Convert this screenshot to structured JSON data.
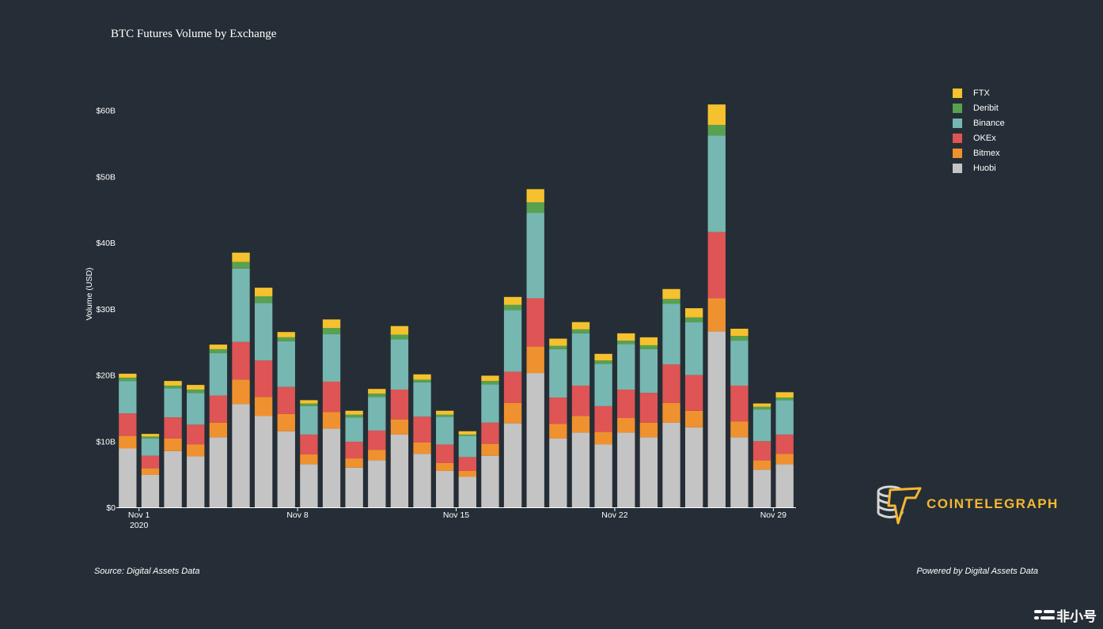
{
  "title": "BTC Futures Volume by Exchange",
  "source_text": "Source: Digital Assets Data",
  "powered_text": "Powered by Digital Assets Data",
  "logo_text": "COINTELEGRAPH",
  "watermark_text": "非小号",
  "chart_data": {
    "type": "bar",
    "stacked": true,
    "ylabel": "Volume (USD)",
    "ylim": [
      0,
      62
    ],
    "yticks": [
      0,
      10,
      20,
      30,
      40,
      50,
      60
    ],
    "ytick_labels": [
      "$0",
      "$10B",
      "$20B",
      "$30B",
      "$40B",
      "$50B",
      "$60B"
    ],
    "xtick_labels": [
      {
        "day": 1,
        "label": "Nov 1",
        "sub": "2020"
      },
      {
        "day": 8,
        "label": "Nov 8",
        "sub": ""
      },
      {
        "day": 15,
        "label": "Nov 15",
        "sub": ""
      },
      {
        "day": 22,
        "label": "Nov 22",
        "sub": ""
      },
      {
        "day": 29,
        "label": "Nov 29",
        "sub": ""
      }
    ],
    "categories": [
      "2020-10-31",
      "2020-11-01",
      "2020-11-02",
      "2020-11-03",
      "2020-11-04",
      "2020-11-05",
      "2020-11-06",
      "2020-11-07",
      "2020-11-08",
      "2020-11-09",
      "2020-11-10",
      "2020-11-11",
      "2020-11-12",
      "2020-11-13",
      "2020-11-14",
      "2020-11-15",
      "2020-11-16",
      "2020-11-17",
      "2020-11-18",
      "2020-11-19",
      "2020-11-20",
      "2020-11-21",
      "2020-11-22",
      "2020-11-23",
      "2020-11-24",
      "2020-11-25",
      "2020-11-26",
      "2020-11-27",
      "2020-11-28",
      "2020-11-29"
    ],
    "legend_position": "top-right",
    "grid": false,
    "series": [
      {
        "name": "Huobi",
        "color": "#c4c4c4",
        "values": [
          8.9,
          4.9,
          8.5,
          7.7,
          10.6,
          15.6,
          13.8,
          11.5,
          6.5,
          11.9,
          6.0,
          7.1,
          11.0,
          8.1,
          5.5,
          4.6,
          7.8,
          12.7,
          20.3,
          10.4,
          11.3,
          9.5,
          11.3,
          10.6,
          12.8,
          12.1,
          26.6,
          10.6,
          5.7,
          6.5
        ]
      },
      {
        "name": "Bitmex",
        "color": "#f0912f",
        "values": [
          1.9,
          1.0,
          1.9,
          1.8,
          2.2,
          3.7,
          2.9,
          2.6,
          1.5,
          2.5,
          1.4,
          1.6,
          2.3,
          1.7,
          1.2,
          0.9,
          1.8,
          3.1,
          4.0,
          2.2,
          2.5,
          1.9,
          2.2,
          2.2,
          3.0,
          2.5,
          5.0,
          2.4,
          1.4,
          1.6
        ]
      },
      {
        "name": "OKEx",
        "color": "#df5454",
        "values": [
          3.4,
          1.9,
          3.2,
          3.0,
          4.1,
          5.7,
          5.5,
          4.1,
          3.0,
          4.6,
          2.5,
          2.9,
          4.5,
          3.9,
          2.8,
          2.1,
          3.2,
          4.7,
          7.3,
          4.0,
          4.6,
          3.9,
          4.3,
          4.5,
          5.8,
          5.4,
          10.0,
          5.4,
          2.9,
          2.9
        ]
      },
      {
        "name": "Binance",
        "color": "#76b7b2",
        "values": [
          4.9,
          2.6,
          4.4,
          4.8,
          6.4,
          11.1,
          8.7,
          6.9,
          4.3,
          7.2,
          3.7,
          5.1,
          7.6,
          5.2,
          4.2,
          3.2,
          5.8,
          9.3,
          12.9,
          7.3,
          7.9,
          6.4,
          6.9,
          6.6,
          9.2,
          8.0,
          14.6,
          6.8,
          4.8,
          5.2
        ]
      },
      {
        "name": "Deribit",
        "color": "#59a14f",
        "values": [
          0.5,
          0.3,
          0.4,
          0.5,
          0.6,
          1.0,
          1.0,
          0.6,
          0.4,
          0.9,
          0.4,
          0.5,
          0.7,
          0.4,
          0.3,
          0.2,
          0.5,
          0.8,
          1.6,
          0.5,
          0.6,
          0.5,
          0.5,
          0.6,
          0.7,
          0.7,
          1.6,
          0.7,
          0.4,
          0.4
        ]
      },
      {
        "name": "FTX",
        "color": "#f5c12e",
        "values": [
          0.6,
          0.4,
          0.7,
          0.7,
          0.7,
          1.4,
          1.3,
          0.8,
          0.5,
          1.3,
          0.6,
          0.7,
          1.3,
          0.8,
          0.6,
          0.5,
          0.8,
          1.2,
          2.0,
          1.1,
          1.1,
          1.0,
          1.1,
          1.2,
          1.5,
          1.4,
          3.1,
          1.1,
          0.5,
          0.8
        ]
      }
    ]
  }
}
